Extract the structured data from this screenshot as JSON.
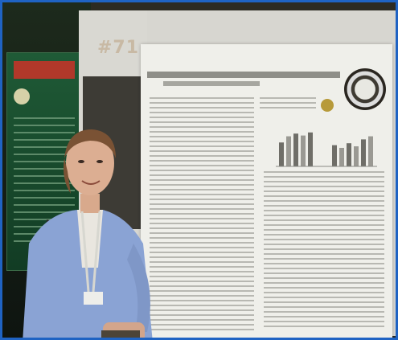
{
  "photo": {
    "board_number": "#71",
    "subject": "person-standing-beside-poster"
  },
  "colors": {
    "frame_border": "#1f63c3",
    "poster_paper": "#efefea",
    "cardigan": "#8aa3d4"
  },
  "chart_bars": [
    {
      "group": "left",
      "values": [
        0.62,
        0.78,
        0.85,
        0.8,
        0.88
      ]
    },
    {
      "group": "right",
      "values": [
        0.55,
        0.48,
        0.6,
        0.52,
        0.7,
        0.78
      ]
    }
  ]
}
